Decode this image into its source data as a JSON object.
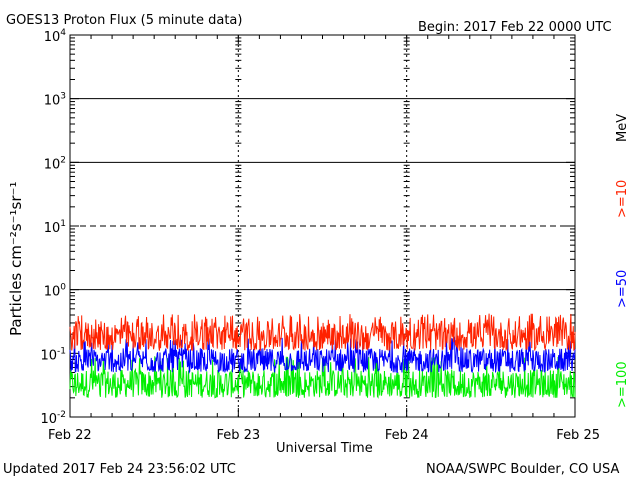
{
  "chart_data": {
    "type": "line",
    "title": "GOES13 Proton Flux (5 minute data)",
    "begin": "Begin: 2017 Feb 22 0000 UTC",
    "xlabel": "Universal Time",
    "ylabel": "Particles cm⁻²s⁻¹sr⁻¹",
    "y_scale": "log",
    "ylim": [
      0.01,
      10000
    ],
    "y_ticks": [
      {
        "value": 10000,
        "label_base": "10",
        "label_exp": "4"
      },
      {
        "value": 1000,
        "label_base": "10",
        "label_exp": "3"
      },
      {
        "value": 100,
        "label_base": "10",
        "label_exp": "2"
      },
      {
        "value": 10,
        "label_base": "10",
        "label_exp": "1"
      },
      {
        "value": 1,
        "label_base": "10",
        "label_exp": "0"
      },
      {
        "value": 0.1,
        "label_base": "10",
        "label_exp": "-1"
      },
      {
        "value": 0.01,
        "label_base": "10",
        "label_exp": "-2"
      }
    ],
    "x_ticks": [
      "Feb 22",
      "Feb 23",
      "Feb 24",
      "Feb 25"
    ],
    "x_range": [
      "2017-02-22",
      "2017-02-25"
    ],
    "threshold_lines": [
      {
        "value": 1000,
        "style": "solid"
      },
      {
        "value": 100,
        "style": "solid"
      },
      {
        "value": 10,
        "style": "dashed"
      },
      {
        "value": 1,
        "style": "solid"
      }
    ],
    "unit_label": "MeV",
    "series": [
      {
        "name": ">=10",
        "color": "#ff2200",
        "baseline": 0.2,
        "low": 0.11,
        "high": 0.42
      },
      {
        "name": ">=50",
        "color": "#0000ff",
        "baseline": 0.075,
        "low": 0.05,
        "high": 0.18
      },
      {
        "name": ">=100",
        "color": "#00ee00",
        "baseline": 0.035,
        "low": 0.02,
        "high": 0.09
      }
    ]
  },
  "footer": {
    "updated": "Updated 2017 Feb 24 23:56:02 UTC",
    "credit": "NOAA/SWPC Boulder, CO USA"
  }
}
